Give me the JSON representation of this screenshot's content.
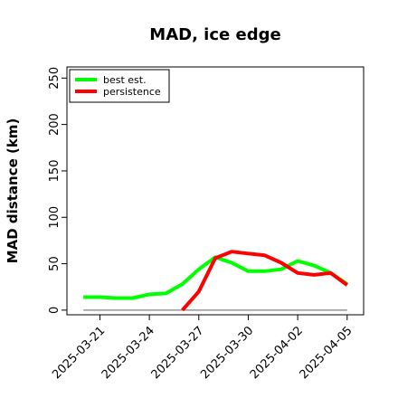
{
  "chart_data": {
    "type": "line",
    "title": "MAD, ice edge",
    "xlabel": "",
    "ylabel": "MAD distance (km)",
    "ylim": [
      -5,
      262
    ],
    "yticks": [
      0,
      50,
      100,
      150,
      200,
      250
    ],
    "xlim": [
      "2025-03-19",
      "2025-04-06"
    ],
    "xticks": [
      "2025-03-21",
      "2025-03-24",
      "2025-03-27",
      "2025-03-30",
      "2025-04-02",
      "2025-04-05"
    ],
    "legend_position": "top-left",
    "grid": false,
    "reference_line": {
      "y": 0,
      "from": "2025-03-20",
      "to": "2025-04-05",
      "color": "#808080"
    },
    "series": [
      {
        "name": "best est.",
        "color": "#00ff00",
        "x": [
          "2025-03-20",
          "2025-03-21",
          "2025-03-22",
          "2025-03-23",
          "2025-03-24",
          "2025-03-25",
          "2025-03-26",
          "2025-03-27",
          "2025-03-28",
          "2025-03-29",
          "2025-03-30",
          "2025-03-31",
          "2025-04-01",
          "2025-04-02",
          "2025-04-03",
          "2025-04-04",
          "2025-04-05"
        ],
        "y": [
          14,
          14,
          13,
          13,
          17,
          18,
          28,
          44,
          57,
          51,
          42,
          42,
          44,
          53,
          48,
          40,
          28
        ]
      },
      {
        "name": "persistence",
        "color": "#ff0000",
        "x": [
          "2025-03-26",
          "2025-03-27",
          "2025-03-28",
          "2025-03-29",
          "2025-03-30",
          "2025-03-31",
          "2025-04-01",
          "2025-04-02",
          "2025-04-03",
          "2025-04-04",
          "2025-04-05"
        ],
        "y": [
          0,
          20,
          56,
          63,
          61,
          59,
          51,
          40,
          38,
          40,
          27
        ]
      }
    ]
  }
}
